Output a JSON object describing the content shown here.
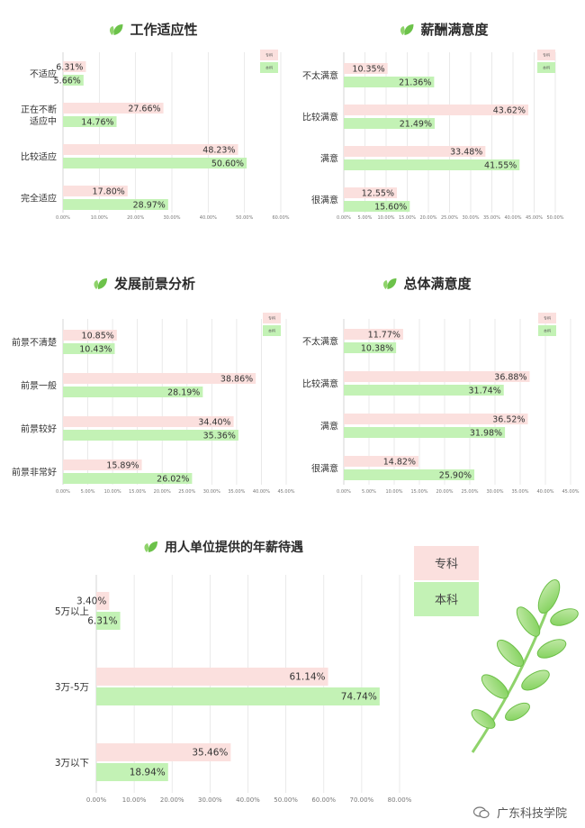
{
  "chart_data": [
    {
      "type": "bar",
      "title": "工作适应性",
      "categories": [
        "不适应",
        "正在不断适应中",
        "比较适应",
        "完全适应"
      ],
      "category_lines": [
        [
          "不适应"
        ],
        [
          "正在不断",
          "适应中"
        ],
        [
          "比较适应"
        ],
        [
          "完全适应"
        ]
      ],
      "series": [
        {
          "name": "专科",
          "values": [
            6.31,
            27.66,
            48.23,
            17.8
          ]
        },
        {
          "name": "本科",
          "values": [
            5.66,
            14.76,
            50.6,
            28.97
          ]
        }
      ],
      "xlim": [
        0,
        60
      ],
      "ticks": [
        "0.00%",
        "10.00%",
        "20.00%",
        "30.00%",
        "40.00%",
        "50.00%",
        "60.00%"
      ],
      "legend": "top-right"
    },
    {
      "type": "bar",
      "title": "薪酬满意度",
      "categories": [
        "不太满意",
        "比较满意",
        "满意",
        "很满意"
      ],
      "category_lines": [
        [
          "不太满意"
        ],
        [
          "比较满意"
        ],
        [
          "满意"
        ],
        [
          "很满意"
        ]
      ],
      "series": [
        {
          "name": "专科",
          "values": [
            10.35,
            43.62,
            33.48,
            12.55
          ]
        },
        {
          "name": "本科",
          "values": [
            21.36,
            21.49,
            41.55,
            15.6
          ]
        }
      ],
      "xlim": [
        0,
        50
      ],
      "ticks": [
        "0.00%",
        "5.00%",
        "10.00%",
        "15.00%",
        "20.00%",
        "25.00%",
        "30.00%",
        "35.00%",
        "40.00%",
        "45.00%",
        "50.00%"
      ],
      "legend": "top-right"
    },
    {
      "type": "bar",
      "title": "发展前景分析",
      "categories": [
        "前景不清楚",
        "前景一般",
        "前景较好",
        "前景非常好"
      ],
      "category_lines": [
        [
          "前景不清楚"
        ],
        [
          "前景一般"
        ],
        [
          "前景较好"
        ],
        [
          "前景非常好"
        ]
      ],
      "series": [
        {
          "name": "专科",
          "values": [
            10.85,
            38.86,
            34.4,
            15.89
          ]
        },
        {
          "name": "本科",
          "values": [
            10.43,
            28.19,
            35.36,
            26.02
          ]
        }
      ],
      "xlim": [
        0,
        45
      ],
      "ticks": [
        "0.00%",
        "5.00%",
        "10.00%",
        "15.00%",
        "20.00%",
        "25.00%",
        "30.00%",
        "35.00%",
        "40.00%",
        "45.00%"
      ],
      "legend": "top-right"
    },
    {
      "type": "bar",
      "title": "总体满意度",
      "categories": [
        "不太满意",
        "比较满意",
        "满意",
        "很满意"
      ],
      "category_lines": [
        [
          "不太满意"
        ],
        [
          "比较满意"
        ],
        [
          "满意"
        ],
        [
          "很满意"
        ]
      ],
      "series": [
        {
          "name": "专科",
          "values": [
            11.77,
            36.88,
            36.52,
            14.82
          ]
        },
        {
          "name": "本科",
          "values": [
            10.38,
            31.74,
            31.98,
            25.9
          ]
        }
      ],
      "xlim": [
        0,
        45
      ],
      "ticks": [
        "0.00%",
        "5.00%",
        "10.00%",
        "15.00%",
        "20.00%",
        "25.00%",
        "30.00%",
        "35.00%",
        "40.00%",
        "45.00%"
      ],
      "legend": "top-right"
    },
    {
      "type": "bar",
      "title": "用人单位提供的年薪待遇",
      "categories": [
        "5万以上",
        "3万-5万",
        "3万以下"
      ],
      "category_lines": [
        [
          "5万以上"
        ],
        [
          "3万-5万"
        ],
        [
          "3万以下"
        ]
      ],
      "series": [
        {
          "name": "专科",
          "values": [
            3.4,
            61.14,
            35.46
          ]
        },
        {
          "name": "本科",
          "values": [
            6.31,
            74.74,
            18.94
          ]
        }
      ],
      "xlim": [
        0,
        80
      ],
      "ticks": [
        "0.00%",
        "10.00%",
        "20.00%",
        "30.00%",
        "40.00%",
        "50.00%",
        "60.00%",
        "70.00%",
        "80.00%"
      ],
      "legend": "right"
    }
  ],
  "colors": {
    "zhuanke": "#fbe0de",
    "benke": "#c3f2b5",
    "grid": "#e4e4e4",
    "leaf_icon": "#6cc24a"
  },
  "icons": {
    "title_icon": "leaf-icon",
    "decoration": "branch-leaves-icon",
    "watermark_icon": "wechat-icon"
  },
  "watermark": "广东科技学院"
}
